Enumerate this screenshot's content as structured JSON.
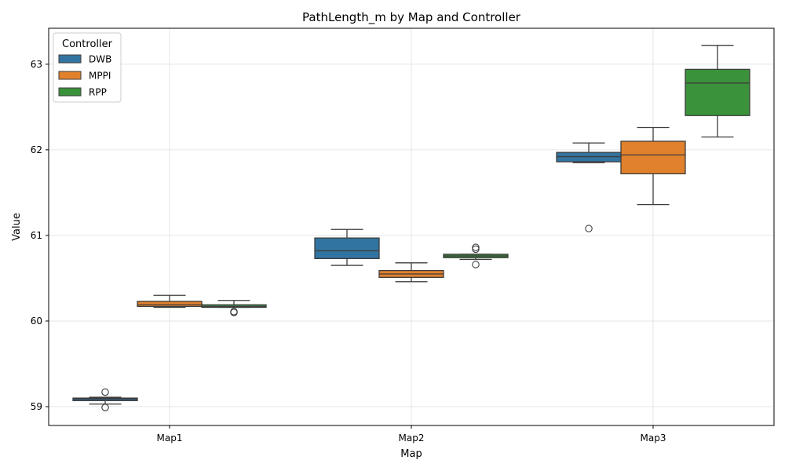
{
  "chart_data": {
    "type": "box",
    "title": "PathLength_m by Map and Controller",
    "xlabel": "Map",
    "ylabel": "Value",
    "categories": [
      "Map1",
      "Map2",
      "Map3"
    ],
    "ylim": [
      58.78,
      63.42
    ],
    "yticks": [
      59,
      60,
      61,
      62,
      63
    ],
    "grid": true,
    "legend": {
      "title": "Controller",
      "position": "top-left"
    },
    "series": [
      {
        "name": "DWB",
        "color": "#3274a1",
        "boxes": [
          {
            "whisker_low": 59.03,
            "q1": 59.07,
            "median": 59.09,
            "q3": 59.1,
            "whisker_high": 59.11,
            "outliers": [
              59.17,
              58.99
            ]
          },
          {
            "whisker_low": 60.65,
            "q1": 60.73,
            "median": 60.82,
            "q3": 60.97,
            "whisker_high": 61.07,
            "outliers": []
          },
          {
            "whisker_low": 61.85,
            "q1": 61.86,
            "median": 61.92,
            "q3": 61.97,
            "whisker_high": 62.08,
            "outliers": [
              61.08
            ]
          }
        ]
      },
      {
        "name": "MPPI",
        "color": "#e1812c",
        "boxes": [
          {
            "whisker_low": 60.16,
            "q1": 60.17,
            "median": 60.19,
            "q3": 60.23,
            "whisker_high": 60.3,
            "outliers": []
          },
          {
            "whisker_low": 60.46,
            "q1": 60.51,
            "median": 60.55,
            "q3": 60.59,
            "whisker_high": 60.68,
            "outliers": []
          },
          {
            "whisker_low": 61.36,
            "q1": 61.72,
            "median": 61.94,
            "q3": 62.1,
            "whisker_high": 62.26,
            "outliers": []
          }
        ]
      },
      {
        "name": "RPP",
        "color": "#3a923a",
        "boxes": [
          {
            "whisker_low": 60.16,
            "q1": 60.16,
            "median": 60.17,
            "q3": 60.19,
            "whisker_high": 60.24,
            "outliers": [
              60.11,
              60.1
            ]
          },
          {
            "whisker_low": 60.72,
            "q1": 60.74,
            "median": 60.76,
            "q3": 60.78,
            "whisker_high": 60.78,
            "outliers": [
              60.86,
              60.84,
              60.66
            ]
          },
          {
            "whisker_low": 62.15,
            "q1": 62.4,
            "median": 62.78,
            "q3": 62.94,
            "whisker_high": 63.22,
            "outliers": []
          }
        ]
      }
    ]
  }
}
